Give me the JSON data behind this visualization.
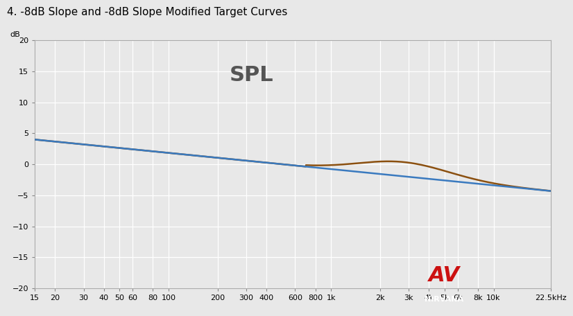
{
  "title": "4. -8dB Slope and -8dB Slope Modified Target Curves",
  "spl_label": "SPL",
  "ylabel": "dB",
  "ylim": [
    -20,
    20
  ],
  "yticks": [
    -20,
    -15,
    -10,
    -5,
    0,
    5,
    10,
    15,
    20
  ],
  "xmin": 15,
  "xmax": 22500,
  "xtick_positions": [
    15,
    20,
    30,
    40,
    50,
    60,
    80,
    100,
    200,
    300,
    400,
    600,
    800,
    1000,
    2000,
    3000,
    4000,
    5000,
    6000,
    8000,
    10000,
    22500
  ],
  "xtick_labels": [
    "15",
    "20",
    "30",
    "40",
    "50",
    "60",
    "80",
    "100",
    "200",
    "300",
    "400",
    "600",
    "800",
    "1k",
    "2k",
    "3k",
    "4k",
    "5k",
    "6k",
    "8k",
    "10k",
    "22.5kHz"
  ],
  "bg_color": "#e8e8e8",
  "grid_color": "#ffffff",
  "line_blue_color": "#3a7abf",
  "line_brown_color": "#8B5010",
  "title_fontsize": 11,
  "spl_fontsize": 22,
  "logo_bg_color": "#4a6070"
}
